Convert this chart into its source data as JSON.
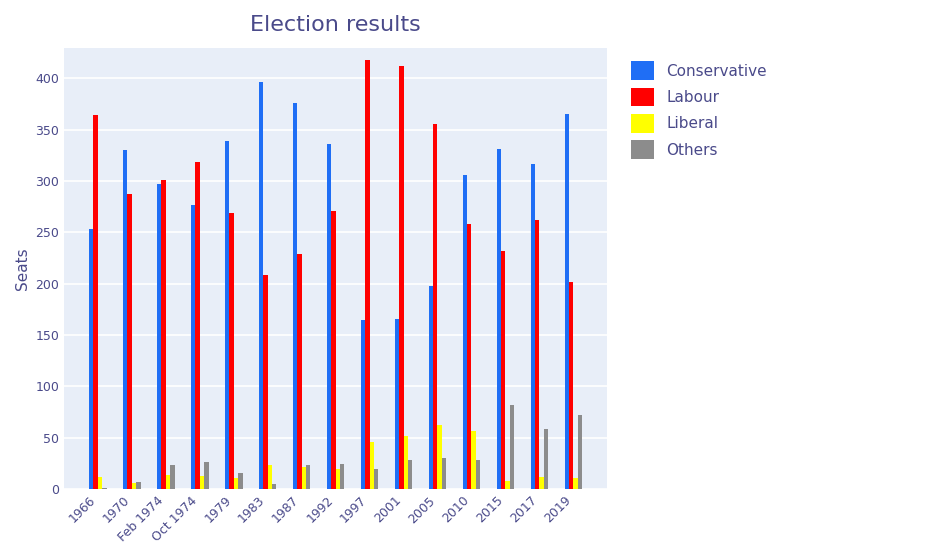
{
  "title": "Election results",
  "ylabel": "Seats",
  "categories": [
    "1966",
    "1970",
    "Feb 1974",
    "Oct 1974",
    "1979",
    "1983",
    "1987",
    "1992",
    "1997",
    "2001",
    "2005",
    "2010",
    "2015",
    "2017",
    "2019"
  ],
  "conservative": [
    253,
    330,
    297,
    277,
    339,
    397,
    376,
    336,
    165,
    166,
    198,
    306,
    331,
    317,
    365
  ],
  "labour": [
    364,
    287,
    301,
    319,
    269,
    209,
    229,
    271,
    418,
    412,
    356,
    258,
    232,
    262,
    202
  ],
  "liberal": [
    12,
    6,
    14,
    13,
    11,
    23,
    22,
    20,
    46,
    52,
    62,
    57,
    8,
    12,
    11
  ],
  "others": [
    1,
    7,
    23,
    26,
    16,
    5,
    23,
    24,
    20,
    28,
    30,
    28,
    82,
    59,
    72
  ],
  "bar_colors": {
    "conservative": "#1f6ef5",
    "labour": "#ff0000",
    "liberal": "#ffff00",
    "others": "#8c8c8c"
  },
  "background_color": "#e8eef8",
  "ylim": [
    0,
    430
  ],
  "legend_labels": [
    "Conservative",
    "Labour",
    "Liberal",
    "Others"
  ],
  "bar_width": 0.13,
  "figsize": [
    9.43,
    5.59
  ],
  "title_fontsize": 16,
  "axis_label_fontsize": 11,
  "tick_fontsize": 9,
  "legend_fontsize": 11,
  "grid_color": "#ffffff",
  "text_color": "#4a4a8a"
}
